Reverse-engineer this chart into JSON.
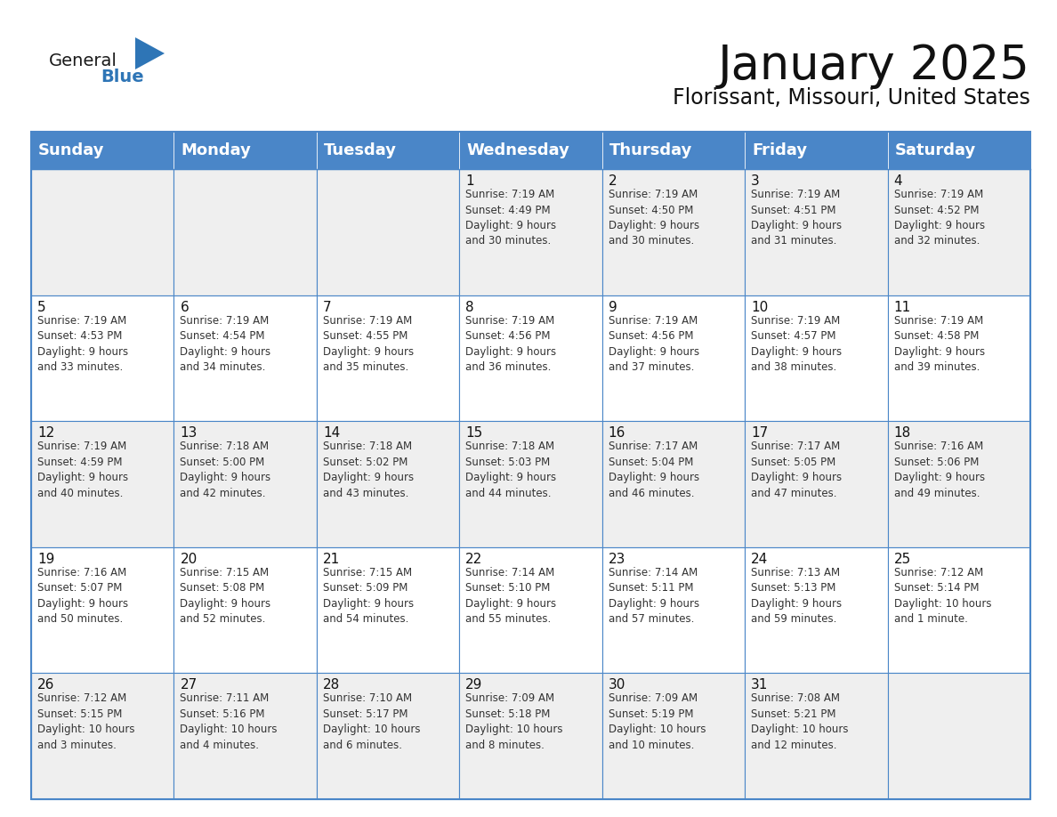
{
  "title": "January 2025",
  "subtitle": "Florissant, Missouri, United States",
  "header_color": "#4a86c8",
  "header_text_color": "#FFFFFF",
  "grid_line_color": "#4a86c8",
  "day_names": [
    "Sunday",
    "Monday",
    "Tuesday",
    "Wednesday",
    "Thursday",
    "Friday",
    "Saturday"
  ],
  "bg_color": "#FFFFFF",
  "cell_bg_gray": "#EFEFEF",
  "cell_bg_white": "#FFFFFF",
  "title_fontsize": 38,
  "subtitle_fontsize": 17,
  "day_header_fontsize": 13,
  "day_num_fontsize": 11,
  "info_fontsize": 8.5,
  "weeks": [
    [
      {
        "day": "",
        "sunrise": "",
        "sunset": "",
        "daylight": ""
      },
      {
        "day": "",
        "sunrise": "",
        "sunset": "",
        "daylight": ""
      },
      {
        "day": "",
        "sunrise": "",
        "sunset": "",
        "daylight": ""
      },
      {
        "day": "1",
        "sunrise": "7:19 AM",
        "sunset": "4:49 PM",
        "daylight_h": "9 hours",
        "daylight_m": "and 30 minutes."
      },
      {
        "day": "2",
        "sunrise": "7:19 AM",
        "sunset": "4:50 PM",
        "daylight_h": "9 hours",
        "daylight_m": "and 30 minutes."
      },
      {
        "day": "3",
        "sunrise": "7:19 AM",
        "sunset": "4:51 PM",
        "daylight_h": "9 hours",
        "daylight_m": "and 31 minutes."
      },
      {
        "day": "4",
        "sunrise": "7:19 AM",
        "sunset": "4:52 PM",
        "daylight_h": "9 hours",
        "daylight_m": "and 32 minutes."
      }
    ],
    [
      {
        "day": "5",
        "sunrise": "7:19 AM",
        "sunset": "4:53 PM",
        "daylight_h": "9 hours",
        "daylight_m": "and 33 minutes."
      },
      {
        "day": "6",
        "sunrise": "7:19 AM",
        "sunset": "4:54 PM",
        "daylight_h": "9 hours",
        "daylight_m": "and 34 minutes."
      },
      {
        "day": "7",
        "sunrise": "7:19 AM",
        "sunset": "4:55 PM",
        "daylight_h": "9 hours",
        "daylight_m": "and 35 minutes."
      },
      {
        "day": "8",
        "sunrise": "7:19 AM",
        "sunset": "4:56 PM",
        "daylight_h": "9 hours",
        "daylight_m": "and 36 minutes."
      },
      {
        "day": "9",
        "sunrise": "7:19 AM",
        "sunset": "4:56 PM",
        "daylight_h": "9 hours",
        "daylight_m": "and 37 minutes."
      },
      {
        "day": "10",
        "sunrise": "7:19 AM",
        "sunset": "4:57 PM",
        "daylight_h": "9 hours",
        "daylight_m": "and 38 minutes."
      },
      {
        "day": "11",
        "sunrise": "7:19 AM",
        "sunset": "4:58 PM",
        "daylight_h": "9 hours",
        "daylight_m": "and 39 minutes."
      }
    ],
    [
      {
        "day": "12",
        "sunrise": "7:19 AM",
        "sunset": "4:59 PM",
        "daylight_h": "9 hours",
        "daylight_m": "and 40 minutes."
      },
      {
        "day": "13",
        "sunrise": "7:18 AM",
        "sunset": "5:00 PM",
        "daylight_h": "9 hours",
        "daylight_m": "and 42 minutes."
      },
      {
        "day": "14",
        "sunrise": "7:18 AM",
        "sunset": "5:02 PM",
        "daylight_h": "9 hours",
        "daylight_m": "and 43 minutes."
      },
      {
        "day": "15",
        "sunrise": "7:18 AM",
        "sunset": "5:03 PM",
        "daylight_h": "9 hours",
        "daylight_m": "and 44 minutes."
      },
      {
        "day": "16",
        "sunrise": "7:17 AM",
        "sunset": "5:04 PM",
        "daylight_h": "9 hours",
        "daylight_m": "and 46 minutes."
      },
      {
        "day": "17",
        "sunrise": "7:17 AM",
        "sunset": "5:05 PM",
        "daylight_h": "9 hours",
        "daylight_m": "and 47 minutes."
      },
      {
        "day": "18",
        "sunrise": "7:16 AM",
        "sunset": "5:06 PM",
        "daylight_h": "9 hours",
        "daylight_m": "and 49 minutes."
      }
    ],
    [
      {
        "day": "19",
        "sunrise": "7:16 AM",
        "sunset": "5:07 PM",
        "daylight_h": "9 hours",
        "daylight_m": "and 50 minutes."
      },
      {
        "day": "20",
        "sunrise": "7:15 AM",
        "sunset": "5:08 PM",
        "daylight_h": "9 hours",
        "daylight_m": "and 52 minutes."
      },
      {
        "day": "21",
        "sunrise": "7:15 AM",
        "sunset": "5:09 PM",
        "daylight_h": "9 hours",
        "daylight_m": "and 54 minutes."
      },
      {
        "day": "22",
        "sunrise": "7:14 AM",
        "sunset": "5:10 PM",
        "daylight_h": "9 hours",
        "daylight_m": "and 55 minutes."
      },
      {
        "day": "23",
        "sunrise": "7:14 AM",
        "sunset": "5:11 PM",
        "daylight_h": "9 hours",
        "daylight_m": "and 57 minutes."
      },
      {
        "day": "24",
        "sunrise": "7:13 AM",
        "sunset": "5:13 PM",
        "daylight_h": "9 hours",
        "daylight_m": "and 59 minutes."
      },
      {
        "day": "25",
        "sunrise": "7:12 AM",
        "sunset": "5:14 PM",
        "daylight_h": "10 hours",
        "daylight_m": "and 1 minute."
      }
    ],
    [
      {
        "day": "26",
        "sunrise": "7:12 AM",
        "sunset": "5:15 PM",
        "daylight_h": "10 hours",
        "daylight_m": "and 3 minutes."
      },
      {
        "day": "27",
        "sunrise": "7:11 AM",
        "sunset": "5:16 PM",
        "daylight_h": "10 hours",
        "daylight_m": "and 4 minutes."
      },
      {
        "day": "28",
        "sunrise": "7:10 AM",
        "sunset": "5:17 PM",
        "daylight_h": "10 hours",
        "daylight_m": "and 6 minutes."
      },
      {
        "day": "29",
        "sunrise": "7:09 AM",
        "sunset": "5:18 PM",
        "daylight_h": "10 hours",
        "daylight_m": "and 8 minutes."
      },
      {
        "day": "30",
        "sunrise": "7:09 AM",
        "sunset": "5:19 PM",
        "daylight_h": "10 hours",
        "daylight_m": "and 10 minutes."
      },
      {
        "day": "31",
        "sunrise": "7:08 AM",
        "sunset": "5:21 PM",
        "daylight_h": "10 hours",
        "daylight_m": "and 12 minutes."
      },
      {
        "day": "",
        "sunrise": "",
        "sunset": "",
        "daylight_h": "",
        "daylight_m": ""
      }
    ]
  ]
}
